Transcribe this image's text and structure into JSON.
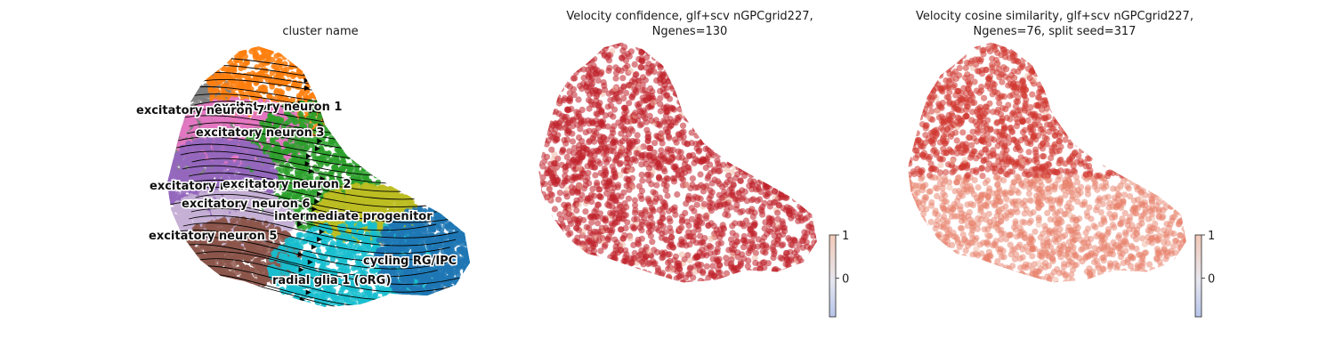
{
  "chart_data": [
    {
      "type": "scatter",
      "title": "cluster name",
      "overlay": "velocity streamlines",
      "clusters": [
        {
          "name": "excitatory neuron 1",
          "color": "#ff7f0e"
        },
        {
          "name": "excitatory neuron 7",
          "color": "#7f7f7f"
        },
        {
          "name": "excitatory neuron 3",
          "color": "#e377c2"
        },
        {
          "name": "excitatory neuron 4",
          "color": "#9467bd"
        },
        {
          "name": "excitatory neuron 2",
          "color": "#2ca02c"
        },
        {
          "name": "excitatory neuron 6",
          "color": "#c5b0d5"
        },
        {
          "name": "intermediate progenitor",
          "color": "#bcbd22"
        },
        {
          "name": "excitatory neuron 5",
          "color": "#8c564b"
        },
        {
          "name": "cycling RG/IPC",
          "color": "#1f77b4"
        },
        {
          "name": "radial glia 1 (oRG)",
          "color": "#17becf"
        }
      ]
    },
    {
      "type": "scatter",
      "title_line1": "Velocity confidence, glf+scv nGPCgrid227,",
      "title_line2": "Ngenes=130",
      "colorbar": {
        "ticks": [
          "1",
          "0"
        ],
        "range": [
          -0.9,
          1
        ],
        "cmap": "coolwarm",
        "low_color": "#b7c5ea",
        "high_color": "#f2c9b8"
      },
      "point_color": "#c0202a"
    },
    {
      "type": "scatter",
      "title_line1": "Velocity cosine similarity, glf+scv nGPCgrid227,",
      "title_line2": "Ngenes=76, split seed=317",
      "colorbar": {
        "ticks": [
          "1",
          "0"
        ],
        "range": [
          -0.9,
          1
        ],
        "cmap": "coolwarm",
        "low_color": "#b7c5ea",
        "high_color": "#f2c9b8"
      },
      "point_color": "#d0372f"
    }
  ]
}
